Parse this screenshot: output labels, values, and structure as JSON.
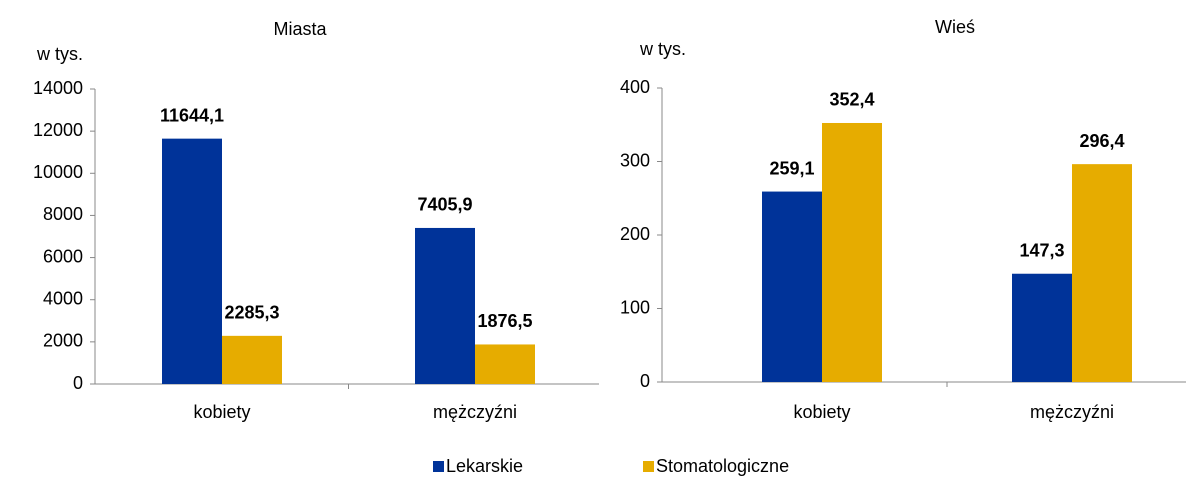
{
  "chart_data": [
    {
      "type": "bar",
      "title": "Miasta",
      "y_label": "w tys.",
      "categories": [
        "kobiety",
        "mężczyźni"
      ],
      "series": [
        {
          "name": "Lekarskie",
          "color": "#003399",
          "values": [
            11644.1,
            7405.9
          ],
          "value_labels": [
            "11644,1",
            "7405,9"
          ]
        },
        {
          "name": "Stomatologiczne",
          "color": "#e6ac00",
          "values": [
            2285.3,
            1876.5
          ],
          "value_labels": [
            "2285,3",
            "1876,5"
          ]
        }
      ],
      "ylim": [
        0,
        14000
      ],
      "yticks": [
        0,
        2000,
        4000,
        6000,
        8000,
        10000,
        12000,
        14000
      ],
      "grid": false
    },
    {
      "type": "bar",
      "title": "Wieś",
      "y_label": "w tys.",
      "categories": [
        "kobiety",
        "mężczyźni"
      ],
      "series": [
        {
          "name": "Lekarskie",
          "color": "#003399",
          "values": [
            259.1,
            147.3
          ],
          "value_labels": [
            "259,1",
            "147,3"
          ]
        },
        {
          "name": "Stomatologiczne",
          "color": "#e6ac00",
          "values": [
            352.4,
            296.4
          ],
          "value_labels": [
            "352,4",
            "296,4"
          ]
        }
      ],
      "ylim": [
        0,
        400
      ],
      "yticks": [
        0,
        100,
        200,
        300,
        400
      ],
      "grid": false
    }
  ]
}
